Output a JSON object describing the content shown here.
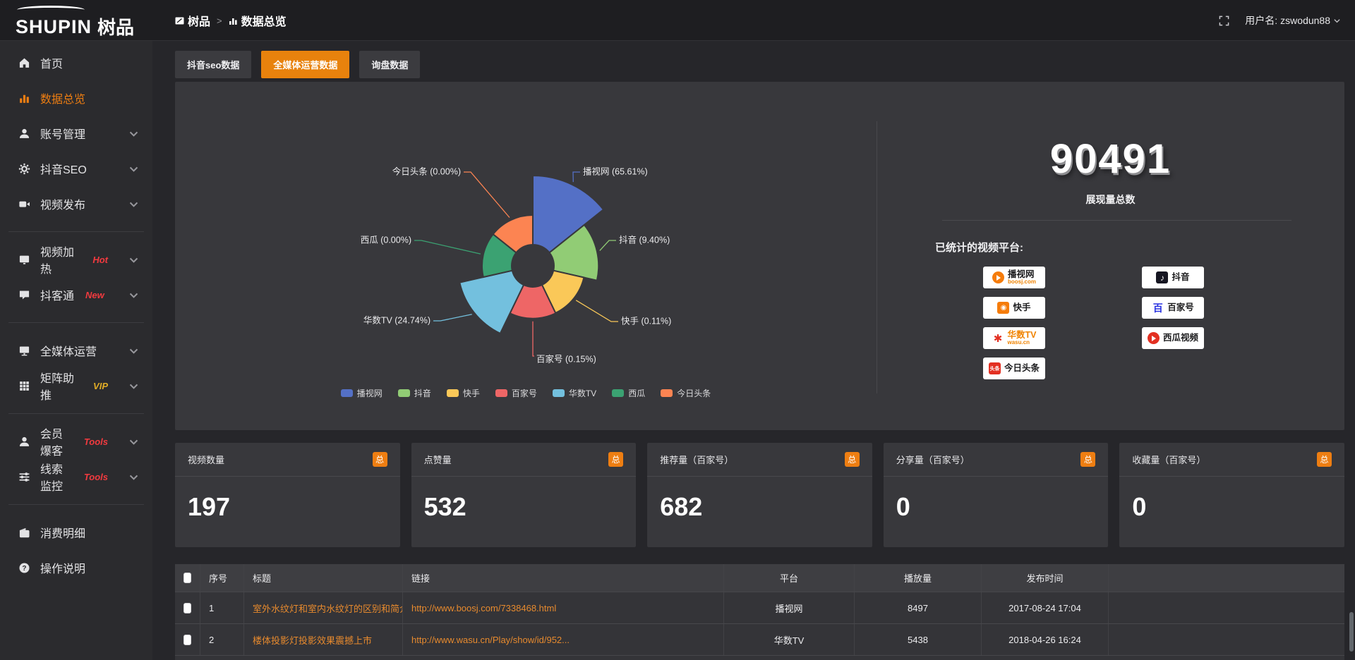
{
  "header": {
    "logo_text": "SHUPIN",
    "logo_suffix": "树品",
    "breadcrumb": {
      "root": "树品",
      "separator": ">",
      "current": "数据总览"
    },
    "user_label": "用户名:",
    "username": "zswodun88"
  },
  "sidebar": {
    "items": [
      {
        "label": "首页",
        "icon": "home"
      },
      {
        "label": "数据总览",
        "icon": "bar-chart",
        "active": true
      },
      {
        "label": "账号管理",
        "icon": "user",
        "expandable": true
      },
      {
        "label": "抖音SEO",
        "icon": "gear",
        "expandable": true
      },
      {
        "label": "视频发布",
        "icon": "video",
        "expandable": true
      },
      {
        "divider": true
      },
      {
        "label": "视频加热",
        "icon": "screen",
        "tag": "Hot",
        "tag_color": "#f23a3f",
        "expandable": true
      },
      {
        "label": "抖客通",
        "icon": "chat",
        "tag": "New",
        "tag_color": "#f23a3f",
        "expandable": true
      },
      {
        "divider": true
      },
      {
        "label": "全媒体运营",
        "icon": "monitor",
        "expandable": true
      },
      {
        "label": "矩阵助推",
        "icon": "grid",
        "tag": "VIP",
        "tag_color": "#e0ac26",
        "expandable": true
      },
      {
        "divider": true
      },
      {
        "label": "会员爆客",
        "icon": "member",
        "tag": "Tools",
        "tag_color": "#f23a3f",
        "expandable": true
      },
      {
        "label": "线索监控",
        "icon": "sliders",
        "tag": "Tools",
        "tag_color": "#f23a3f",
        "expandable": true
      },
      {
        "divider": true
      },
      {
        "label": "消费明细",
        "icon": "wallet"
      },
      {
        "label": "操作说明",
        "icon": "help"
      }
    ]
  },
  "tabs": [
    {
      "label": "抖音seo数据",
      "active": false
    },
    {
      "label": "全媒体运营数据",
      "active": true
    },
    {
      "label": "询盘数据",
      "active": false
    }
  ],
  "chart_data": {
    "type": "pie",
    "variant": "nightingale-rose",
    "categories": [
      "播视网",
      "抖音",
      "快手",
      "百家号",
      "华数TV",
      "西瓜",
      "今日头条"
    ],
    "values_percent": [
      65.61,
      9.4,
      0.11,
      0.15,
      24.74,
      0.0,
      0.0
    ],
    "display_labels": [
      "播视网 (65.61%)",
      "抖音 (9.40%)",
      "快手 (0.11%)",
      "百家号 (0.15%)",
      "华数TV (24.74%)",
      "西瓜 (0.00%)",
      "今日头条 (0.00%)"
    ],
    "colors": [
      "#5470c6",
      "#91cc75",
      "#fac858",
      "#ee6666",
      "#73c0de",
      "#3ba272",
      "#fc8452"
    ],
    "legend_position": "bottom",
    "title": ""
  },
  "summary": {
    "total_value": "90491",
    "total_label": "展现量总数",
    "platforms_title": "已统计的视频平台:",
    "badges_left": [
      {
        "name": "播视网",
        "sub": "boosj.com",
        "logo": "boosj"
      },
      {
        "name": "快手",
        "logo": "kuaishou"
      },
      {
        "name": "华数TV",
        "sub": "wasu.cn",
        "logo": "wasu"
      },
      {
        "name": "今日头条",
        "logo": "toutiao"
      }
    ],
    "badges_right": [
      {
        "name": "抖音",
        "logo": "douyin"
      },
      {
        "name": "百家号",
        "logo": "baijiahao"
      },
      {
        "name": "西瓜视频",
        "logo": "xigua"
      }
    ]
  },
  "stat_cards": [
    {
      "label": "视频数量",
      "badge": "总",
      "value": "197"
    },
    {
      "label": "点赞量",
      "badge": "总",
      "value": "532"
    },
    {
      "label": "推荐量（百家号）",
      "badge": "总",
      "value": "682"
    },
    {
      "label": "分享量（百家号）",
      "badge": "总",
      "value": "0"
    },
    {
      "label": "收藏量（百家号）",
      "badge": "总",
      "value": "0"
    }
  ],
  "table": {
    "columns": [
      "序号",
      "标题",
      "链接",
      "平台",
      "播放量",
      "发布时间"
    ],
    "rows": [
      {
        "no": "1",
        "title": "室外水纹灯和室内水纹灯的区别和简介",
        "link": "http://www.boosj.com/7338468.html",
        "platform": "播视网",
        "plays": "8497",
        "published": "2017-08-24 17:04"
      },
      {
        "no": "2",
        "title": "楼体投影灯投影效果震撼上市",
        "link": "http://www.wasu.cn/Play/show/id/952...",
        "platform": "华数TV",
        "plays": "5438",
        "published": "2018-04-26 16:24"
      }
    ]
  },
  "accent_color": "#e8820d",
  "link_color": "#e78a2e"
}
